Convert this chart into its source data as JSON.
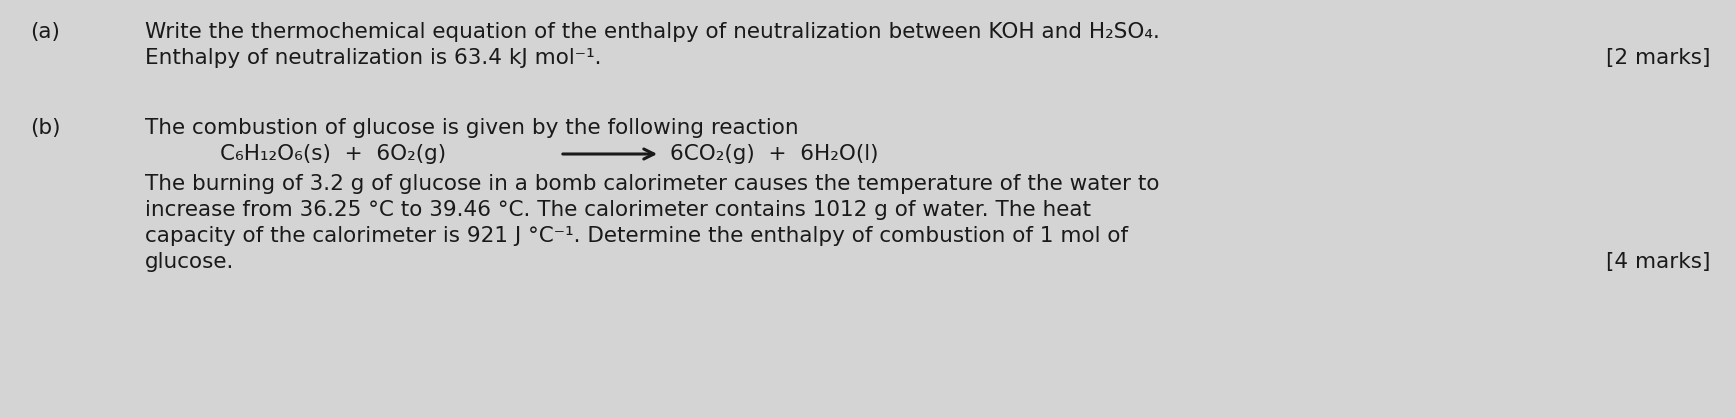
{
  "bg_color": "#d4d4d4",
  "text_color": "#1a1a1a",
  "fig_width": 17.35,
  "fig_height": 4.17,
  "dpi": 100,
  "part_a_label": "(a)",
  "part_a_line1": "Write the thermochemical equation of the enthalpy of neutralization between KOH and H₂SO₄.",
  "part_a_line2": "Enthalpy of neutralization is 63.4 kJ mol⁻¹.",
  "part_a_marks": "[2 marks]",
  "part_b_label": "(b)",
  "part_b_line1": "The combustion of glucose is given by the following reaction",
  "part_b_eq_left": "C₆H₁₂O₆(s)  +  6O₂(g)",
  "part_b_eq_right": "6CO₂(g)  +  6H₂O(l)",
  "part_b_body1": "The burning of 3.2 g of glucose in a bomb calorimeter causes the temperature of the water to",
  "part_b_body2": "increase from 36.25 °C to 39.46 °C. The calorimeter contains 1012 g of water. The heat",
  "part_b_body3": "capacity of the calorimeter is 921 J °C⁻¹. Determine the enthalpy of combustion of 1 mol of",
  "part_b_body4": "glucose.",
  "part_b_marks": "[4 marks]",
  "font_size_main": 15.5,
  "font_size_eq": 15.5
}
